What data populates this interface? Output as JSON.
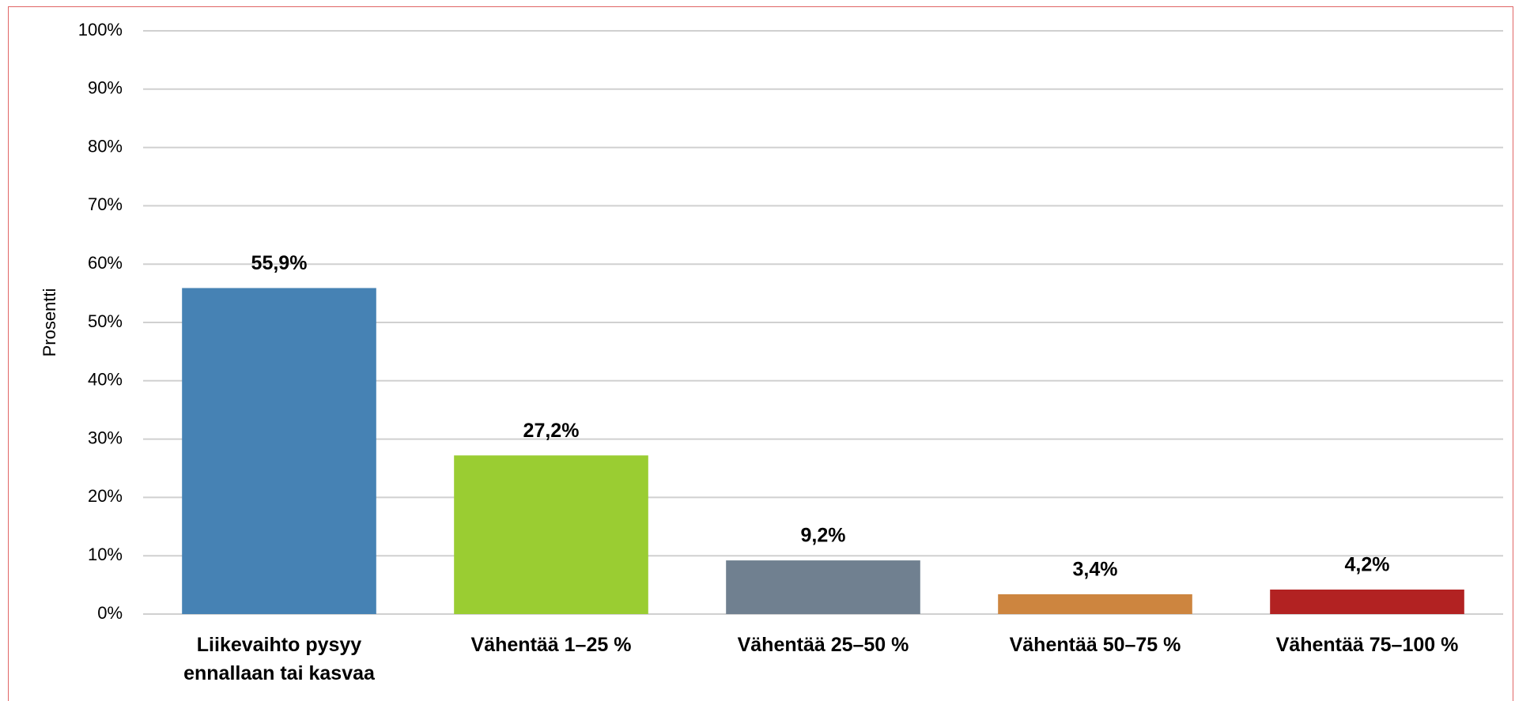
{
  "chart_data": {
    "type": "bar",
    "y_label": "Prosentti",
    "categories": [
      "Liikevaihto pysyy ennallaan tai kasvaa",
      "Vähentää 1–25 %",
      "Vähentää 25–50 %",
      "Vähentää 50–75 %",
      "Vähentää 75–100 %"
    ],
    "values": [
      55.9,
      27.2,
      9.2,
      3.4,
      4.2
    ],
    "value_labels": [
      "55,9%",
      "27,2%",
      "9,2%",
      "3,4%",
      "4,2%"
    ],
    "colors": [
      "#4682b4",
      "#9acd32",
      "#708090",
      "#cd853f",
      "#b22222"
    ],
    "ylim": [
      0,
      100
    ],
    "yticks": [
      {
        "value": 0,
        "label": "0%"
      },
      {
        "value": 10,
        "label": "10%"
      },
      {
        "value": 20,
        "label": "20%"
      },
      {
        "value": 30,
        "label": "30%"
      },
      {
        "value": 40,
        "label": "40%"
      },
      {
        "value": 50,
        "label": "50%"
      },
      {
        "value": 60,
        "label": "60%"
      },
      {
        "value": 70,
        "label": "70%"
      },
      {
        "value": 80,
        "label": "80%"
      },
      {
        "value": 90,
        "label": "90%"
      },
      {
        "value": 100,
        "label": "100%"
      }
    ],
    "grid": true
  }
}
